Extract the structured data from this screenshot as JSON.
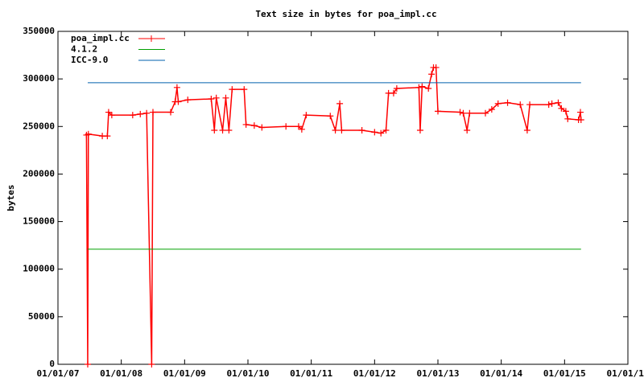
{
  "chart_data": {
    "type": "line",
    "title": "Text size in bytes for poa_impl.cc",
    "y_label": "bytes",
    "xlim": [
      2007,
      2016
    ],
    "xticks": [
      {
        "value": 2007,
        "label": "01/01/07"
      },
      {
        "value": 2008,
        "label": "01/01/08"
      },
      {
        "value": 2009,
        "label": "01/01/09"
      },
      {
        "value": 2010,
        "label": "01/01/10"
      },
      {
        "value": 2011,
        "label": "01/01/11"
      },
      {
        "value": 2012,
        "label": "01/01/12"
      },
      {
        "value": 2013,
        "label": "01/01/13"
      },
      {
        "value": 2014,
        "label": "01/01/14"
      },
      {
        "value": 2015,
        "label": "01/01/15"
      },
      {
        "value": 2016,
        "label": "01/01/16"
      }
    ],
    "ylim": [
      0,
      350000
    ],
    "yticks": [
      0,
      50000,
      100000,
      150000,
      200000,
      250000,
      300000,
      350000
    ],
    "legend": "top-left",
    "series": [
      {
        "name": "poa_impl.cc",
        "color": "#ff0000",
        "points": true,
        "x": [
          2007.45,
          2007.47,
          2007.48,
          2007.7,
          2007.78,
          2007.8,
          2007.85,
          2008.18,
          2008.3,
          2008.4,
          2008.48,
          2008.5,
          2008.78,
          2008.85,
          2008.88,
          2008.9,
          2009.05,
          2009.42,
          2009.47,
          2009.5,
          2009.6,
          2009.65,
          2009.7,
          2009.75,
          2009.94,
          2009.97,
          2010.1,
          2010.22,
          2010.6,
          2010.8,
          2010.85,
          2010.92,
          2011.3,
          2011.38,
          2011.45,
          2011.48,
          2011.8,
          2012.0,
          2012.1,
          2012.18,
          2012.22,
          2012.3,
          2012.35,
          2012.7,
          2012.72,
          2012.75,
          2012.85,
          2012.9,
          2012.93,
          2012.97,
          2013.0,
          2013.35,
          2013.4,
          2013.46,
          2013.5,
          2013.75,
          2013.85,
          2013.95,
          2014.1,
          2014.3,
          2014.41,
          2014.45,
          2014.75,
          2014.8,
          2014.9,
          2014.95,
          2015.02,
          2015.05,
          2015.22,
          2015.25,
          2015.26
        ],
        "values": [
          241000,
          0,
          242000,
          240000,
          240000,
          265000,
          262000,
          262000,
          263000,
          264000,
          0,
          265000,
          265000,
          276000,
          291000,
          276000,
          278000,
          279000,
          246000,
          280000,
          246000,
          280000,
          246000,
          289000,
          289000,
          252000,
          251000,
          249000,
          250000,
          250000,
          247000,
          262000,
          261000,
          246000,
          274000,
          246000,
          246000,
          244000,
          243000,
          246000,
          285000,
          285000,
          290000,
          291000,
          246000,
          292000,
          290000,
          305000,
          312000,
          312000,
          266000,
          265000,
          264000,
          246000,
          264000,
          264000,
          268000,
          274000,
          275000,
          273000,
          246000,
          273000,
          273000,
          274000,
          275000,
          269000,
          266000,
          258000,
          257000,
          265000,
          257000
        ]
      },
      {
        "name": "4.1.2",
        "color": "#00a000",
        "x": [
          2007.47,
          2015.26
        ],
        "values": [
          121000,
          121000
        ]
      },
      {
        "name": "ICC-9.0",
        "color": "#0060ad",
        "x": [
          2007.47,
          2015.26
        ],
        "values": [
          296000,
          296000
        ]
      }
    ]
  }
}
